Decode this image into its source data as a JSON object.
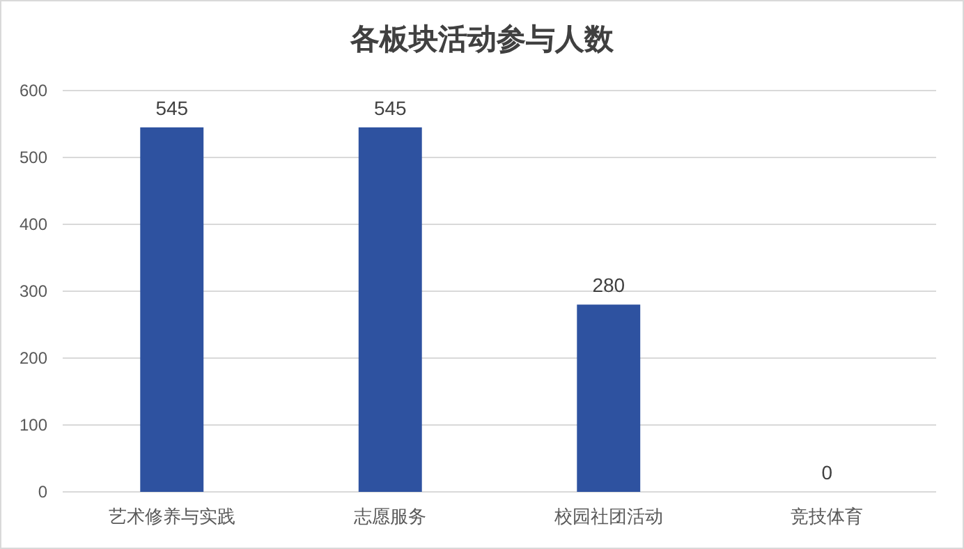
{
  "chart_data": {
    "type": "bar",
    "title": "各板块活动参与人数",
    "categories": [
      "艺术修养与实践",
      "志愿服务",
      "校园社团活动",
      "竞技体育"
    ],
    "values": [
      545,
      545,
      280,
      0
    ],
    "color": "#2e52a0",
    "ylim": [
      0,
      600
    ],
    "yticks": [
      0,
      100,
      200,
      300,
      400,
      500,
      600
    ],
    "grid": "y",
    "data_labels": true
  }
}
